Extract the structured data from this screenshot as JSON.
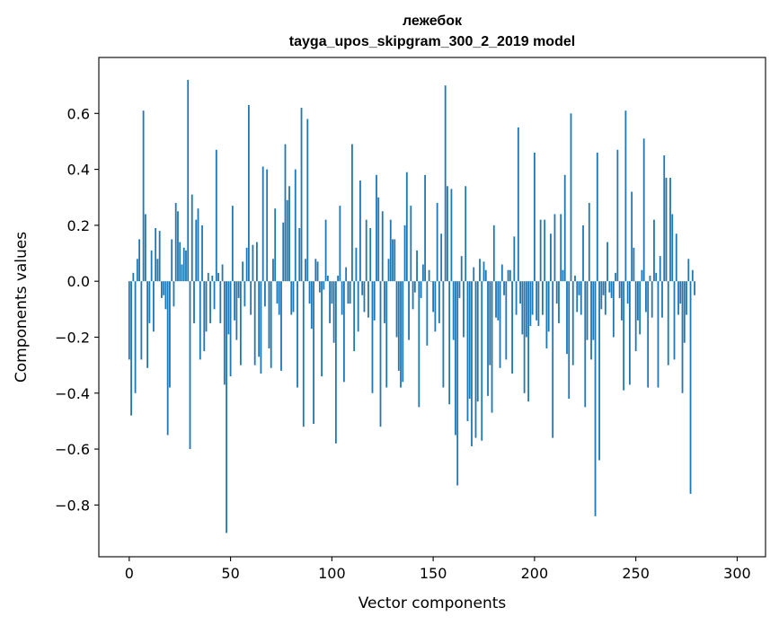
{
  "chart_data": {
    "type": "bar",
    "title": "лежебок",
    "subtitle": "tayga_upos_skipgram_300_2_2019 model",
    "xlabel": "Vector components",
    "ylabel": "Components values",
    "xlim": [
      -15,
      314
    ],
    "ylim": [
      -0.985,
      0.8
    ],
    "xticks": [
      0,
      50,
      100,
      150,
      200,
      250,
      300
    ],
    "xtick_labels": [
      "0",
      "50",
      "100",
      "150",
      "200",
      "250",
      "300"
    ],
    "yticks": [
      -0.8,
      -0.6,
      -0.4,
      -0.2,
      0.0,
      0.2,
      0.4,
      0.6
    ],
    "ytick_labels": [
      "−0.8",
      "−0.6",
      "−0.4",
      "−0.2",
      "0.0",
      "0.2",
      "0.4",
      "0.6"
    ],
    "color": "#1f77b4",
    "values": [
      -0.28,
      -0.48,
      0.03,
      -0.4,
      0.08,
      0.15,
      -0.28,
      0.61,
      0.24,
      -0.31,
      -0.15,
      0.11,
      -0.18,
      0.19,
      0.08,
      0.18,
      -0.06,
      -0.05,
      -0.1,
      -0.55,
      -0.38,
      0.15,
      -0.09,
      0.28,
      0.25,
      0.14,
      0.06,
      0.12,
      0.11,
      0.72,
      -0.6,
      0.31,
      -0.15,
      0.22,
      0.26,
      -0.28,
      0.2,
      -0.25,
      -0.18,
      0.03,
      -0.15,
      0.02,
      -0.1,
      0.47,
      0.03,
      -0.15,
      0.06,
      -0.37,
      -0.9,
      -0.19,
      -0.34,
      0.27,
      -0.14,
      -0.21,
      -0.06,
      -0.3,
      0.07,
      -0.09,
      0.12,
      0.63,
      -0.12,
      0.13,
      -0.3,
      0.14,
      -0.27,
      -0.33,
      0.41,
      -0.09,
      0.4,
      -0.24,
      -0.31,
      0.08,
      0.26,
      -0.08,
      -0.12,
      -0.32,
      0.21,
      0.49,
      0.29,
      0.34,
      -0.12,
      -0.11,
      0.4,
      -0.38,
      0.19,
      0.62,
      -0.52,
      0.08,
      0.58,
      -0.08,
      -0.17,
      -0.51,
      0.08,
      0.07,
      -0.04,
      -0.34,
      -0.03,
      0.22,
      0.02,
      -0.15,
      -0.08,
      -0.22,
      -0.58,
      0.02,
      0.27,
      -0.12,
      -0.36,
      0.05,
      -0.08,
      -0.08,
      0.49,
      -0.25,
      0.12,
      -0.18,
      0.36,
      -0.05,
      -0.11,
      0.22,
      -0.13,
      0.19,
      -0.4,
      -0.14,
      0.38,
      0.3,
      -0.52,
      0.25,
      -0.15,
      -0.38,
      0.08,
      0.22,
      0.15,
      0.15,
      -0.2,
      -0.32,
      -0.38,
      -0.36,
      0.2,
      0.39,
      -0.21,
      0.27,
      -0.1,
      -0.04,
      0.11,
      -0.45,
      -0.06,
      0.06,
      0.38,
      -0.23,
      0.04,
      0.0,
      -0.11,
      -0.18,
      0.28,
      -0.15,
      0.17,
      -0.38,
      0.7,
      0.34,
      -0.44,
      0.33,
      -0.21,
      -0.55,
      -0.73,
      -0.06,
      0.09,
      -0.2,
      0.34,
      -0.5,
      -0.42,
      -0.59,
      0.05,
      -0.56,
      -0.43,
      0.08,
      -0.57,
      0.07,
      0.04,
      -0.41,
      -0.3,
      -0.47,
      0.2,
      -0.13,
      -0.14,
      -0.31,
      0.06,
      -0.05,
      -0.28,
      0.04,
      0.04,
      -0.33,
      0.16,
      -0.12,
      0.55,
      -0.08,
      -0.19,
      -0.4,
      -0.2,
      -0.43,
      -0.16,
      -0.12,
      0.46,
      -0.14,
      -0.16,
      0.22,
      -0.12,
      0.22,
      -0.24,
      -0.18,
      0.17,
      -0.56,
      0.24,
      -0.08,
      -0.15,
      0.24,
      0.04,
      0.38,
      -0.26,
      -0.42,
      0.6,
      -0.3,
      0.02,
      -0.11,
      -0.05,
      -0.12,
      0.2,
      -0.45,
      -0.21,
      0.28,
      -0.28,
      -0.21,
      -0.84,
      0.46,
      -0.64,
      -0.1,
      -0.05,
      -0.12,
      0.14,
      -0.04,
      -0.06,
      -0.2,
      0.03,
      0.47,
      -0.06,
      -0.14,
      -0.39,
      0.61,
      -0.08,
      -0.37,
      0.32,
      0.12,
      -0.25,
      -0.14,
      -0.19,
      0.04,
      0.51,
      -0.11,
      -0.38,
      0.02,
      -0.13,
      0.22,
      0.03,
      -0.38,
      0.09,
      -0.13,
      0.45,
      0.37,
      -0.3,
      0.37,
      0.24,
      -0.28,
      0.17,
      -0.12,
      -0.08,
      -0.4,
      -0.22,
      -0.12,
      0.08,
      -0.76,
      0.04,
      -0.05
    ]
  }
}
